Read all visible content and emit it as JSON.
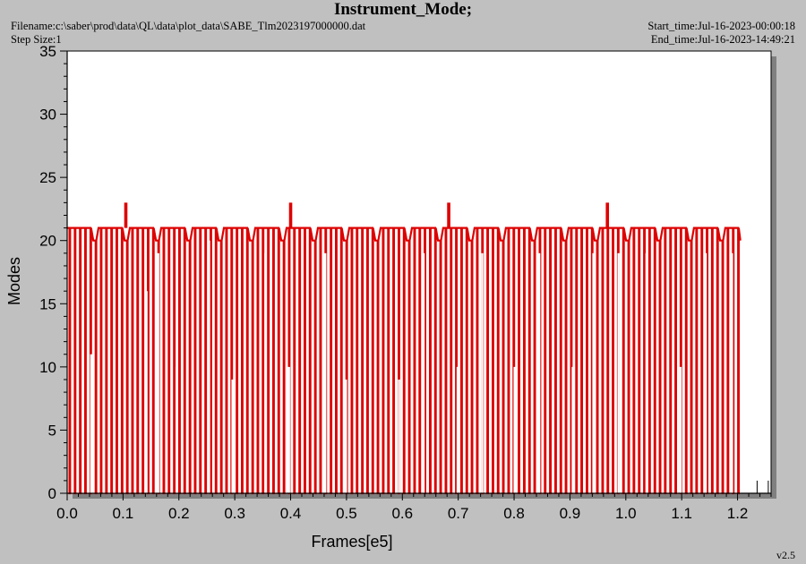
{
  "header": {
    "title": "Instrument_Mode;",
    "filename": "Filename:c:\\saber\\prod\\data\\QL\\data\\plot_data\\SABE_Tlm2023197000000.dat",
    "step_size": "Step Size:1",
    "start_time": "Start_time:Jul-16-2023-00:00:18",
    "end_time": "End_time:Jul-16-2023-14:49:21"
  },
  "version": "v2.5",
  "colors": {
    "background": "#c0c0c0",
    "plot_area": "#ffffff",
    "shadow": "#808080",
    "series": "#dd0000"
  },
  "chart_data": {
    "type": "line",
    "xlabel": "Frames[e5]",
    "ylabel": "Modes",
    "xlim": [
      0.0,
      1.26
    ],
    "ylim": [
      0,
      35
    ],
    "x_ticks": [
      "0.0",
      "0.1",
      "0.2",
      "0.3",
      "0.4",
      "0.5",
      "0.6",
      "0.7",
      "0.8",
      "0.9",
      "1.0",
      "1.1",
      "1.2"
    ],
    "y_ticks": [
      "0",
      "5",
      "10",
      "15",
      "20",
      "25",
      "30",
      "35"
    ],
    "grid": false,
    "series": [
      {
        "baseline_mode": 21,
        "secondary_mode": 20,
        "low_mode": 0,
        "spike_mode": 23,
        "spikes_x": [
          0.105,
          0.4,
          0.683,
          0.967
        ],
        "x_end": 1.205,
        "pulse_period": 0.00935,
        "dip_levels_x": [
          {
            "x": 0.043,
            "y": 11
          },
          {
            "x": 0.142,
            "y": 16
          },
          {
            "x": 0.163,
            "y": 19
          },
          {
            "x": 0.196,
            "y": 10
          },
          {
            "x": 0.254,
            "y": 20
          },
          {
            "x": 0.296,
            "y": 9
          },
          {
            "x": 0.355,
            "y": 19
          },
          {
            "x": 0.397,
            "y": 10
          },
          {
            "x": 0.462,
            "y": 19
          },
          {
            "x": 0.499,
            "y": 9
          },
          {
            "x": 0.594,
            "y": 9
          },
          {
            "x": 0.638,
            "y": 19
          },
          {
            "x": 0.699,
            "y": 10
          },
          {
            "x": 0.743,
            "y": 19
          },
          {
            "x": 0.801,
            "y": 10
          },
          {
            "x": 0.845,
            "y": 19
          },
          {
            "x": 0.905,
            "y": 10
          },
          {
            "x": 0.942,
            "y": 19
          },
          {
            "x": 0.987,
            "y": 19
          },
          {
            "x": 1.037,
            "y": 19
          },
          {
            "x": 1.098,
            "y": 10
          },
          {
            "x": 1.143,
            "y": 19
          },
          {
            "x": 1.19,
            "y": 19
          }
        ],
        "residual_ticks_x": [
          1.235,
          1.255
        ]
      }
    ]
  }
}
